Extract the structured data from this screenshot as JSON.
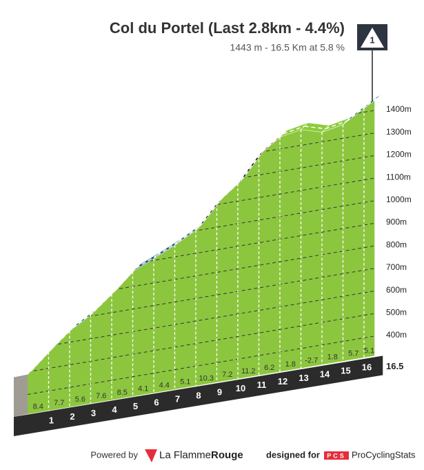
{
  "chart_data": {
    "type": "profile",
    "title": "Col du Portel (Last 2.8km - 4.4%)",
    "subtitle": "1443 m - 16.5 Km at 5.8 %",
    "summit_elevation": 1443,
    "marker_label": "1",
    "km_labels": [
      1,
      2,
      3,
      4,
      5,
      6,
      7,
      8,
      9,
      10,
      11,
      12,
      13,
      14,
      15,
      16
    ],
    "distance": 16.5,
    "values": [
      8.4,
      7.7,
      5.6,
      7.6,
      8.5,
      4.1,
      4.4,
      5.1,
      10.3,
      7.2,
      11.2,
      6.2,
      1.8,
      -2.7,
      1.8,
      5.7,
      5.1
    ],
    "colors": [
      "#e62e3b",
      "#e62e3b",
      "#1c5a85",
      "#e62e3b",
      "#e62e3b",
      "#1c5a85",
      "#1c5a85",
      "#1c5a85",
      "#111111",
      "#e62e3b",
      "#111111",
      "#e62e3b",
      "#8ccc3a",
      "#8ccc3a",
      "#8ccc3a",
      "#1c5a85",
      "#1c5a85"
    ],
    "body_color": "#8cc63f",
    "ylim": [
      400,
      1400
    ],
    "yticks": [
      {
        "value": 400,
        "label": "400m"
      },
      {
        "value": 500,
        "label": "500m"
      },
      {
        "value": 600,
        "label": "600m"
      },
      {
        "value": 700,
        "label": "700m"
      },
      {
        "value": 800,
        "label": "800m"
      },
      {
        "value": 900,
        "label": "900m"
      },
      {
        "value": 1000,
        "label": "1000m"
      },
      {
        "value": 1100,
        "label": "1100m"
      },
      {
        "value": 1200,
        "label": "1200m"
      },
      {
        "value": 1300,
        "label": "1300m"
      },
      {
        "value": 1400,
        "label": "1400m"
      }
    ],
    "grid": true
  },
  "footer": {
    "powered": "Powered by",
    "brand1": "La Flamme",
    "brand2": "Rouge",
    "designed": "designed for",
    "pcs": "PCS",
    "site": "ProCyclingStats"
  }
}
